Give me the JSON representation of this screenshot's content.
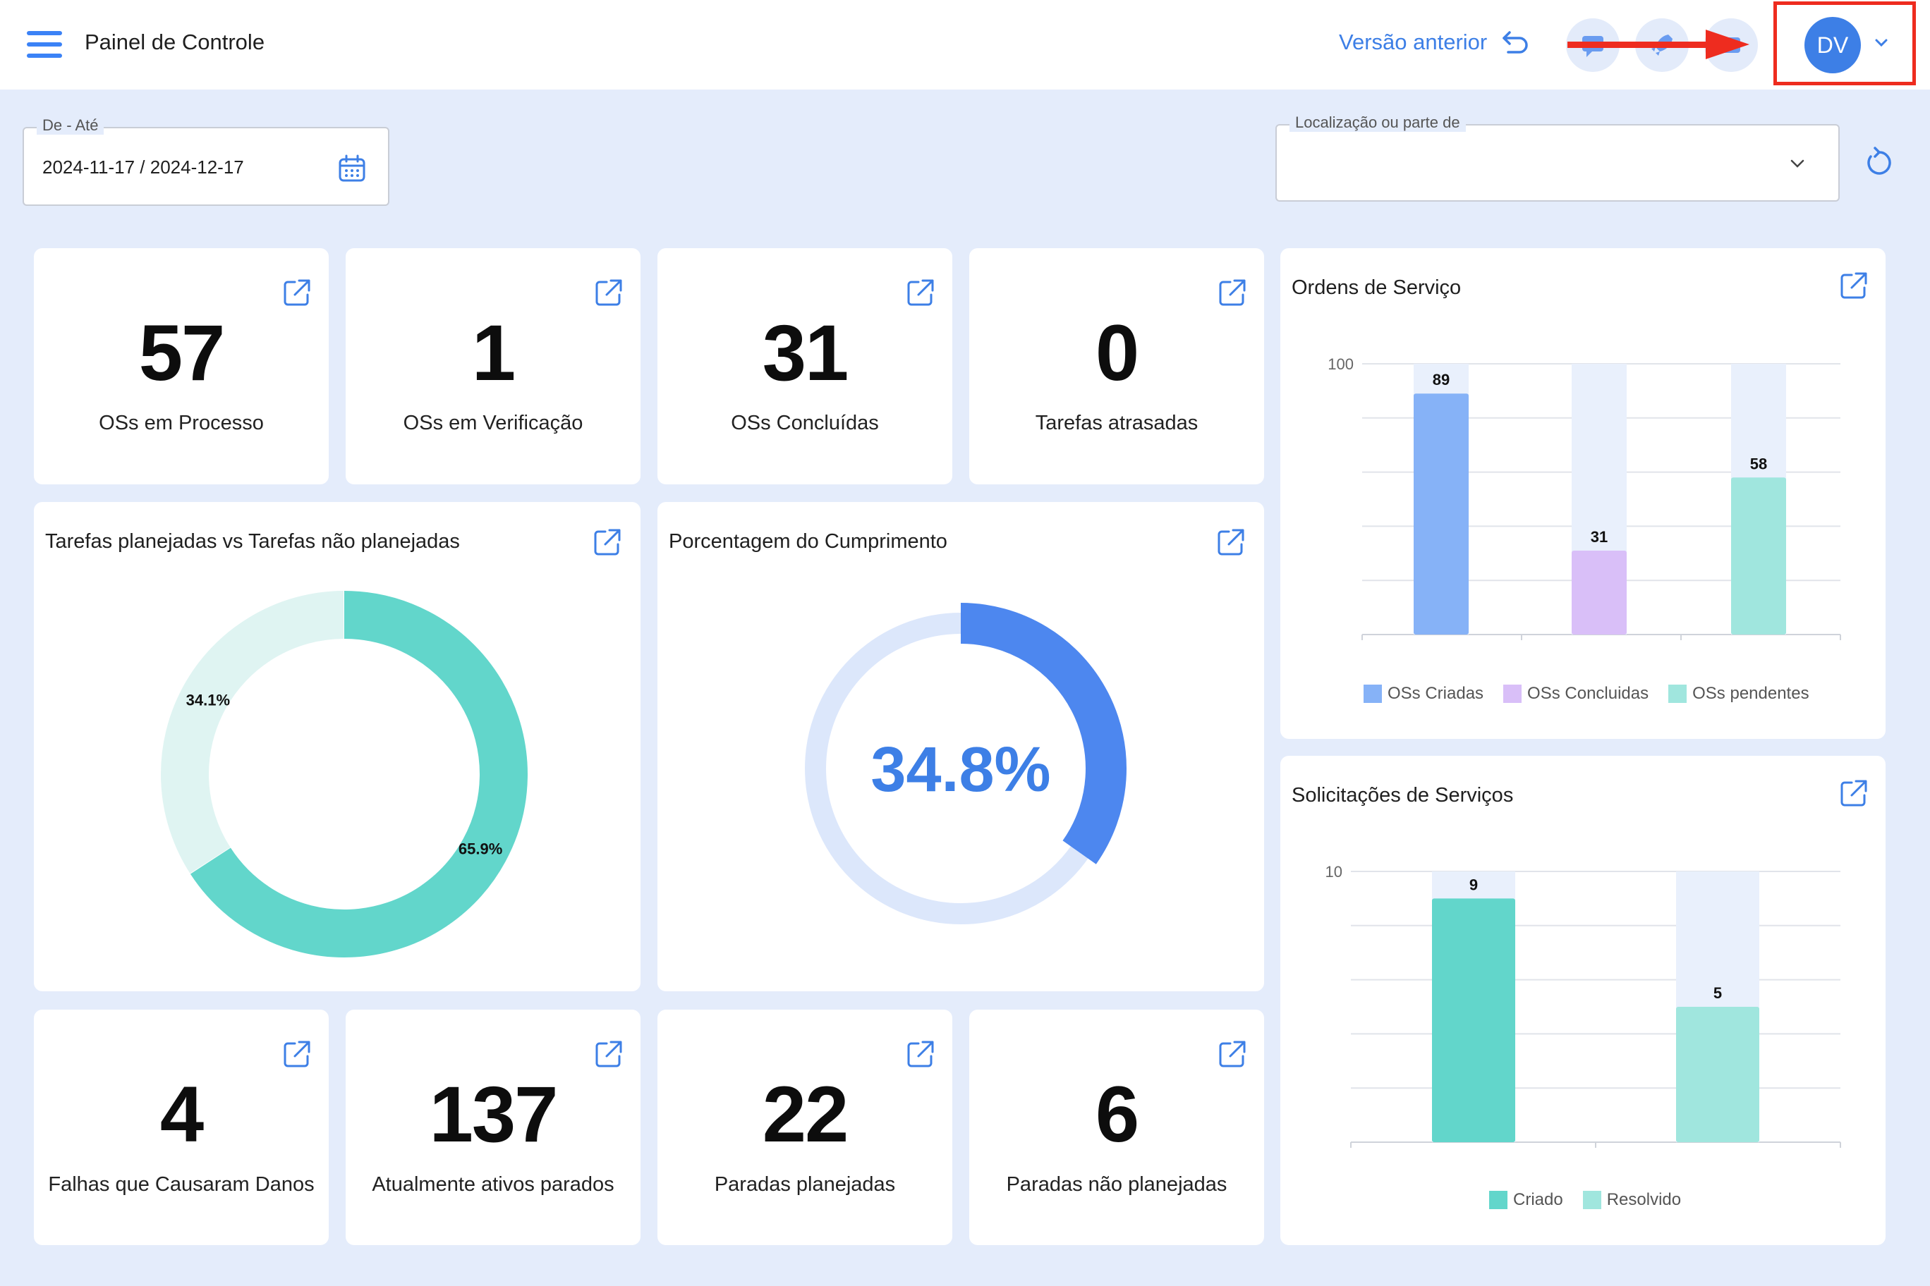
{
  "header": {
    "title": "Painel de Controle",
    "prev_version_label": "Versão anterior",
    "avatar_initials": "DV"
  },
  "filters": {
    "date_label": "De - Até",
    "date_value": "2024-11-17 / 2024-12-17",
    "location_label": "Localização ou parte de",
    "location_value": ""
  },
  "kpis": [
    {
      "value": "57",
      "label": "OSs em Processo"
    },
    {
      "value": "1",
      "label": "OSs em Verificação"
    },
    {
      "value": "31",
      "label": "OSs Concluídas"
    },
    {
      "value": "0",
      "label": "Tarefas atrasadas"
    },
    {
      "value": "4",
      "label": "Falhas que Causaram Danos"
    },
    {
      "value": "137",
      "label": "Atualmente ativos parados"
    },
    {
      "value": "22",
      "label": "Paradas planejadas"
    },
    {
      "value": "6",
      "label": "Paradas não planejadas"
    }
  ],
  "colors": {
    "accent": "#3d7fe6",
    "teal": "#62d6cb",
    "teal_light": "#dff4f2",
    "purple": "#d9bff8",
    "blue_bar": "#86b2f7",
    "mint": "#a0e6de"
  },
  "chart_data": [
    {
      "type": "pie",
      "title": "Tarefas planejadas vs Tarefas não planejadas",
      "slices": [
        {
          "label": "65.9%",
          "value": 65.9,
          "color": "#62d6cb"
        },
        {
          "label": "34.1%",
          "value": 34.1,
          "color": "#dff4f2"
        }
      ]
    },
    {
      "type": "gauge",
      "title": "Porcentagem do Cumprimento",
      "value": 34.8,
      "display": "34.8%"
    },
    {
      "type": "bar",
      "title": "Ordens de Serviço",
      "categories": [
        "OSs Criadas",
        "OSs Concluidas",
        "OSs pendentes"
      ],
      "values": [
        89,
        31,
        58
      ],
      "colors": [
        "#86b2f7",
        "#d9bff8",
        "#a0e6de"
      ],
      "ylim": [
        0,
        100
      ],
      "yticks": [
        "100"
      ],
      "legend": [
        "OSs Criadas",
        "OSs Concluidas",
        "OSs pendentes"
      ],
      "legend_position": "bottom"
    },
    {
      "type": "bar",
      "title": "Solicitações de Serviços",
      "categories": [
        "Criado",
        "Resolvido"
      ],
      "values": [
        9,
        5
      ],
      "colors": [
        "#62d6cb",
        "#a0e6de"
      ],
      "ylim": [
        0,
        10
      ],
      "yticks": [
        "10"
      ],
      "legend": [
        "Criado",
        "Resolvido"
      ],
      "legend_position": "bottom"
    }
  ]
}
